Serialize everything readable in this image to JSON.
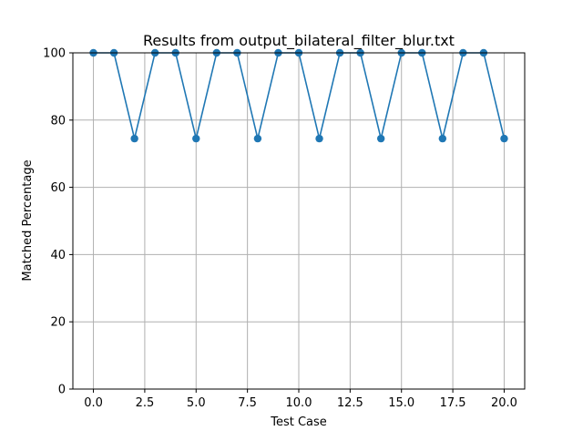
{
  "chart_data": {
    "type": "line",
    "title": "Results from output_bilateral_filter_blur.txt",
    "xlabel": "Test Case",
    "ylabel": "Matched Percentage",
    "xlim": [
      -1,
      21
    ],
    "ylim": [
      0,
      100
    ],
    "xticks": [
      0.0,
      2.5,
      5.0,
      7.5,
      10.0,
      12.5,
      15.0,
      17.5,
      20.0
    ],
    "xtick_labels": [
      "0.0",
      "2.5",
      "5.0",
      "7.5",
      "10.0",
      "12.5",
      "15.0",
      "17.5",
      "20.0"
    ],
    "yticks": [
      0,
      20,
      40,
      60,
      80,
      100
    ],
    "ytick_labels": [
      "0",
      "20",
      "40",
      "60",
      "80",
      "100"
    ],
    "grid": true,
    "marker": "circle",
    "line_color": "#1f77b4",
    "grid_color": "#b0b0b0",
    "x": [
      0,
      1,
      2,
      3,
      4,
      5,
      6,
      7,
      8,
      9,
      10,
      11,
      12,
      13,
      14,
      15,
      16,
      17,
      18,
      19,
      20
    ],
    "series": [
      {
        "values": [
          100,
          100,
          74.5,
          100,
          100,
          74.5,
          100,
          100,
          74.5,
          100,
          100,
          74.5,
          100,
          100,
          74.5,
          100,
          100,
          74.5,
          100,
          100,
          74.5
        ]
      }
    ]
  }
}
